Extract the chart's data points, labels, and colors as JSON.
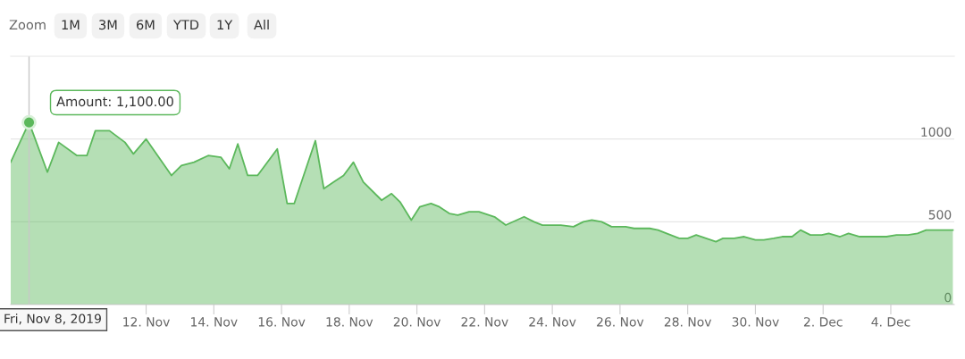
{
  "chart_data": {
    "type": "area",
    "x": [
      "2019-11-08T00:00",
      "2019-11-08T13:00",
      "2019-11-09T02:00",
      "2019-11-09T10:00",
      "2019-11-09T23:00",
      "2019-11-10T06:00",
      "2019-11-10T12:00",
      "2019-11-10T22:00",
      "2019-11-11T09:00",
      "2019-11-11T15:00",
      "2019-11-12T00:00",
      "2019-11-12T18:00",
      "2019-11-13T01:00",
      "2019-11-13T10:00",
      "2019-11-13T20:00",
      "2019-11-14T05:00",
      "2019-11-14T11:00",
      "2019-11-14T17:00",
      "2019-11-15T00:00",
      "2019-11-15T07:00",
      "2019-11-15T21:00",
      "2019-11-16T04:00",
      "2019-11-16T09:00",
      "2019-11-17T00:00",
      "2019-11-17T06:00",
      "2019-11-17T13:00",
      "2019-11-17T20:00",
      "2019-11-18T03:00",
      "2019-11-18T10:00",
      "2019-11-18T23:00",
      "2019-11-19T06:00",
      "2019-11-19T12:00",
      "2019-11-19T20:00",
      "2019-11-20T02:00",
      "2019-11-20T10:00",
      "2019-11-20T16:00",
      "2019-11-20T23:00",
      "2019-11-21T05:00",
      "2019-11-21T13:00",
      "2019-11-21T20:00",
      "2019-11-22T07:00",
      "2019-11-22T15:00",
      "2019-11-23T04:00",
      "2019-11-23T11:00",
      "2019-11-23T17:00",
      "2019-11-24T00:00",
      "2019-11-24T06:00",
      "2019-11-24T15:00",
      "2019-11-24T22:00",
      "2019-11-25T04:00",
      "2019-11-25T11:00",
      "2019-11-25T18:00",
      "2019-11-26T04:00",
      "2019-11-26T10:00",
      "2019-11-26T21:00",
      "2019-11-27T03:00",
      "2019-11-27T09:00",
      "2019-11-27T18:00",
      "2019-11-28T00:00",
      "2019-11-28T06:00",
      "2019-11-28T13:00",
      "2019-11-28T20:00",
      "2019-11-29T01:00",
      "2019-11-29T09:00",
      "2019-11-29T16:00",
      "2019-11-30T00:00",
      "2019-11-30T06:00",
      "2019-11-30T13:00",
      "2019-11-30T19:00",
      "2019-12-01T02:00",
      "2019-12-01T08:00",
      "2019-12-01T15:00",
      "2019-12-01T23:00",
      "2019-12-02T04:00",
      "2019-12-02T12:00",
      "2019-12-02T18:00",
      "2019-12-03T02:00",
      "2019-12-03T09:00",
      "2019-12-03T21:00",
      "2019-12-04T04:00",
      "2019-12-04T12:00",
      "2019-12-04T19:00",
      "2019-12-05T01:00",
      "2019-12-05T20:00"
    ],
    "series": [
      {
        "color": "#5cb85c",
        "values": [
          860,
          1100,
          800,
          980,
          900,
          900,
          1050,
          1050,
          980,
          910,
          1000,
          780,
          840,
          860,
          900,
          890,
          820,
          970,
          780,
          780,
          940,
          610,
          610,
          990,
          700,
          740,
          780,
          860,
          740,
          630,
          670,
          620,
          510,
          590,
          610,
          590,
          550,
          540,
          560,
          560,
          530,
          480,
          530,
          500,
          480,
          480,
          480,
          470,
          500,
          510,
          500,
          470,
          470,
          460,
          460,
          450,
          430,
          400,
          400,
          420,
          400,
          380,
          400,
          400,
          410,
          390,
          390,
          400,
          410,
          410,
          450,
          420,
          420,
          430,
          410,
          430,
          410,
          410,
          410,
          420,
          420,
          430,
          450,
          450
        ]
      }
    ],
    "xlim": [
      "2019-11-08T00:00",
      "2019-12-05T21:00"
    ],
    "xticks": [
      {
        "value": "2019-11-12",
        "label": "12. Nov"
      },
      {
        "value": "2019-11-14",
        "label": "14. Nov"
      },
      {
        "value": "2019-11-16",
        "label": "16. Nov"
      },
      {
        "value": "2019-11-18",
        "label": "18. Nov"
      },
      {
        "value": "2019-11-20",
        "label": "20. Nov"
      },
      {
        "value": "2019-11-22",
        "label": "22. Nov"
      },
      {
        "value": "2019-11-24",
        "label": "24. Nov"
      },
      {
        "value": "2019-11-26",
        "label": "26. Nov"
      },
      {
        "value": "2019-11-28",
        "label": "28. Nov"
      },
      {
        "value": "2019-11-30",
        "label": "30. Nov"
      },
      {
        "value": "2019-12-02",
        "label": "2. Dec"
      },
      {
        "value": "2019-12-04",
        "label": "4. Dec"
      }
    ],
    "ylim": [
      0,
      1500
    ],
    "yticks": [
      0,
      500,
      1000
    ],
    "grid": "y",
    "marker": "none",
    "ref_lines": [
      {
        "axis": "x",
        "value": "2019-11-08T13:00",
        "color": "#c8c8c8"
      }
    ],
    "annotations": [
      {
        "text": "Amount: 1,100.00",
        "x": "2019-11-08T13:00",
        "y": 1100
      },
      "Fri, Nov 8, 2019",
      "Zoom",
      "1M",
      "3M",
      "6M",
      "YTD",
      "1Y",
      "All"
    ]
  }
}
